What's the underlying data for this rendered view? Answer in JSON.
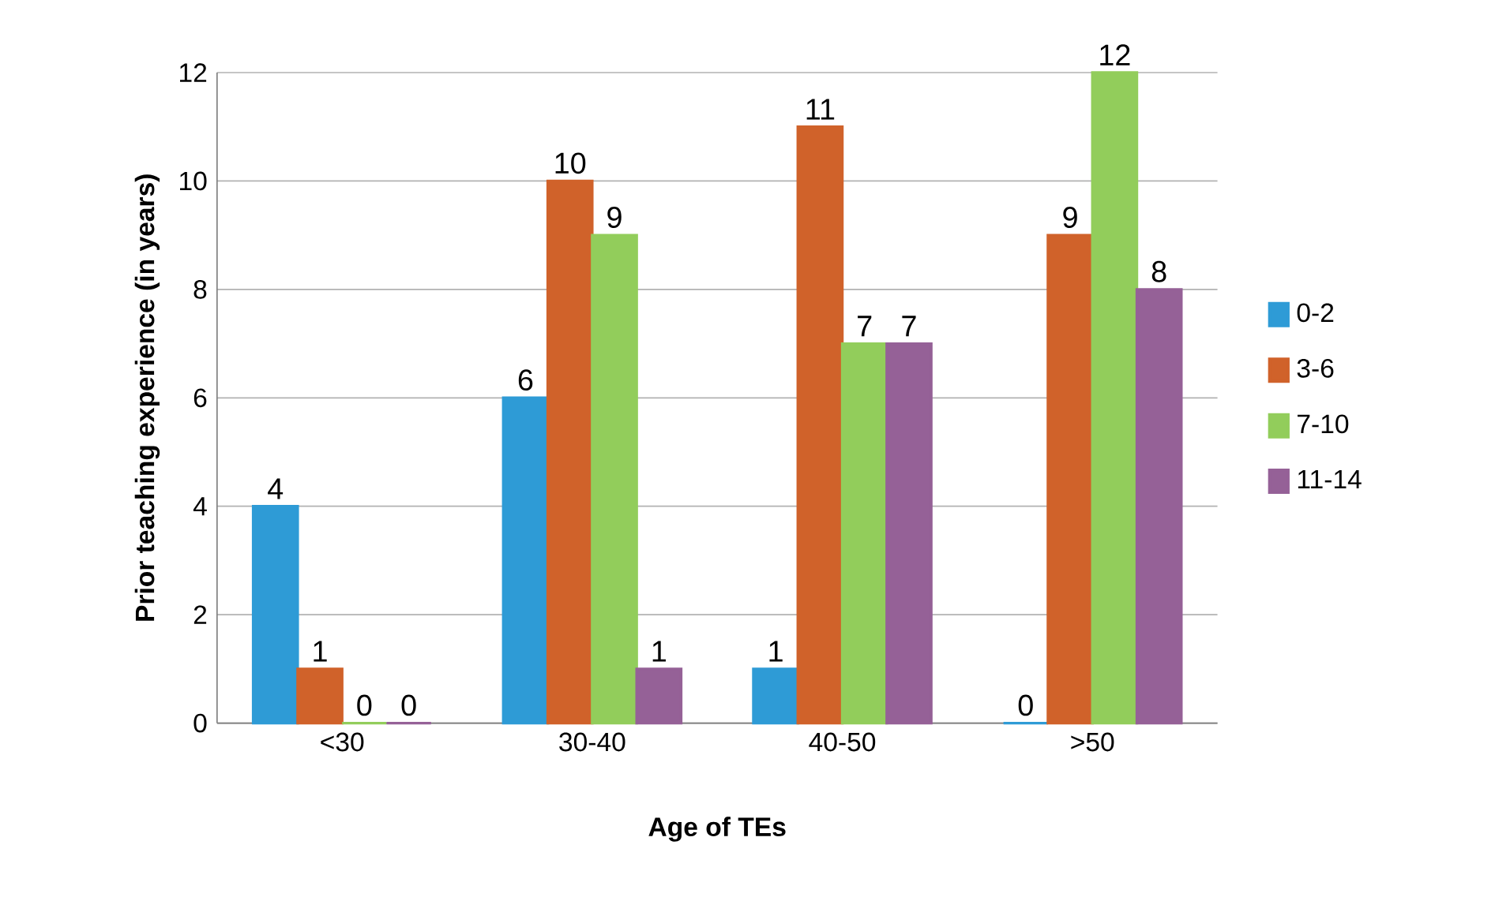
{
  "chart_data": {
    "type": "bar",
    "xlabel": "Age of TEs",
    "ylabel": "Prior teaching experience (in years)",
    "categories": [
      "<30",
      "30-40",
      "40-50",
      ">50"
    ],
    "series": [
      {
        "name": "0-2",
        "color": "#2e9bd6",
        "values": [
          4,
          6,
          1,
          0
        ]
      },
      {
        "name": "3-6",
        "color": "#d0622a",
        "values": [
          1,
          10,
          11,
          9
        ]
      },
      {
        "name": "7-10",
        "color": "#92cd5b",
        "values": [
          0,
          9,
          7,
          12
        ]
      },
      {
        "name": "11-14",
        "color": "#956197",
        "values": [
          0,
          1,
          7,
          8
        ]
      }
    ],
    "ylim": [
      0,
      12
    ],
    "yticks": [
      0,
      2,
      4,
      6,
      8,
      10,
      12
    ],
    "grid": "y",
    "legend": "right",
    "data_labels": true
  }
}
